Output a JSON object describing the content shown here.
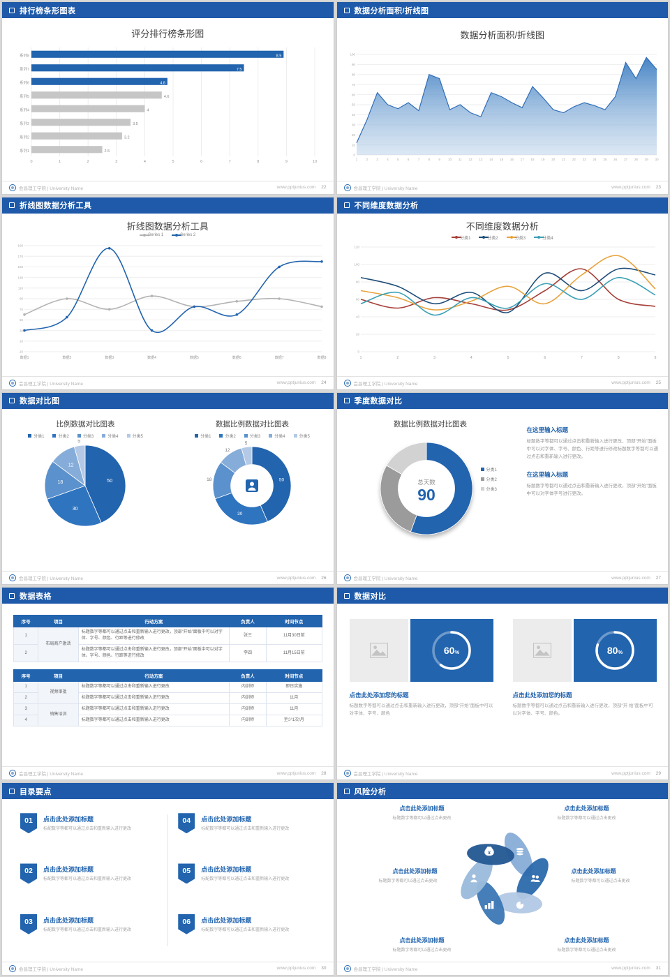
{
  "page": {
    "background": "#d8d8d8",
    "slide_bg": "#ffffff",
    "accent": "#1e5aa9",
    "bar_blue": "#2264ae"
  },
  "footer": {
    "school": "会昌理工学院 | University Name",
    "site": "www.pptjunius.com"
  },
  "slides": [
    {
      "header": "排行榜条形图表",
      "page_num": "22"
    },
    {
      "header": "数据分析面积/折线图",
      "page_num": "23"
    },
    {
      "header": "折线图数据分析工具",
      "page_num": "24"
    },
    {
      "header": "不同维度数据分析",
      "page_num": "25"
    },
    {
      "header": "数据对比图",
      "page_num": "26"
    },
    {
      "header": "季度数据对比",
      "page_num": "27"
    },
    {
      "header": "数据表格",
      "page_num": "28"
    },
    {
      "header": "数据对比",
      "page_num": "29"
    },
    {
      "header": "目录要点",
      "page_num": "30"
    },
    {
      "header": "风险分析",
      "page_num": "31"
    }
  ],
  "chart_data": [
    {
      "id": "ranking-bar",
      "type": "bar",
      "orientation": "horizontal",
      "title": "评分排行榜条形图",
      "categories": [
        "系列1",
        "系列2",
        "系列3",
        "系列4",
        "系列5",
        "系列6",
        "系列7",
        "系列8"
      ],
      "values": [
        2.5,
        3.2,
        3.5,
        4,
        4.6,
        4.8,
        7.5,
        8.9
      ],
      "highlight_from": 5,
      "highlight_color": "#2264ae",
      "bar_color": "#c6c6c6",
      "xlim": [
        0,
        10
      ],
      "xticks": [
        0,
        1,
        2,
        3,
        4,
        5,
        6,
        7,
        8,
        9,
        10
      ]
    },
    {
      "id": "area-analysis",
      "type": "area",
      "title": "数据分析面积/折线图",
      "x": [
        1,
        2,
        3,
        4,
        5,
        6,
        7,
        8,
        9,
        10,
        11,
        12,
        13,
        14,
        15,
        16,
        17,
        18,
        19,
        20,
        21,
        22,
        23,
        24,
        25,
        26,
        27,
        28,
        29,
        30
      ],
      "values": [
        12,
        35,
        62,
        50,
        46,
        52,
        44,
        80,
        76,
        45,
        50,
        42,
        38,
        62,
        58,
        52,
        47,
        68,
        57,
        45,
        42,
        48,
        52,
        49,
        45,
        58,
        92,
        76,
        97,
        85
      ],
      "ylim": [
        0,
        100
      ],
      "yticks": [
        0,
        10,
        20,
        30,
        40,
        50,
        60,
        70,
        80,
        90,
        100
      ],
      "line_color": "#2f6db8",
      "fill_top": "#3d7ec2",
      "fill_bottom": "#b8d0e8"
    },
    {
      "id": "line-tools",
      "type": "line",
      "title": "折线图数据分析工具",
      "categories": [
        "数据1",
        "数据2",
        "数据3",
        "数据4",
        "数据5",
        "数据6",
        "数据7",
        "数据8"
      ],
      "series": [
        {
          "name": "Series 1",
          "color": "#b3b3b3",
          "values": [
            60,
            90,
            70,
            95,
            75,
            85,
            90,
            75
          ]
        },
        {
          "name": "Series 2",
          "color": "#2264ae",
          "values": [
            30,
            55,
            185,
            30,
            75,
            60,
            150,
            160
          ]
        }
      ],
      "ylim": [
        -10,
        190
      ],
      "yticks": [
        -10,
        10,
        30,
        50,
        70,
        90,
        110,
        130,
        150,
        170,
        190
      ],
      "markers": true,
      "legend": "top"
    },
    {
      "id": "dimension-lines",
      "type": "line",
      "title": "不同维度数据分析",
      "categories": [
        "1",
        "2",
        "3",
        "4",
        "5",
        "6",
        "7",
        "8",
        "9"
      ],
      "series": [
        {
          "name": "分类1",
          "color": "#a6403a",
          "values": [
            60,
            50,
            62,
            55,
            48,
            70,
            95,
            60,
            52
          ]
        },
        {
          "name": "分类2",
          "color": "#1f4e79",
          "values": [
            85,
            75,
            55,
            68,
            45,
            90,
            70,
            95,
            88
          ]
        },
        {
          "name": "分类3",
          "color": "#e8a33d",
          "values": [
            70,
            62,
            48,
            58,
            75,
            55,
            88,
            110,
            72
          ]
        },
        {
          "name": "分类4",
          "color": "#3aa0b5",
          "values": [
            55,
            68,
            42,
            62,
            50,
            78,
            60,
            85,
            65
          ]
        }
      ],
      "ylim": [
        0,
        120
      ],
      "yticks": [
        0,
        20,
        40,
        60,
        80,
        100,
        120
      ],
      "markers": false,
      "legend": "top"
    },
    {
      "id": "ratio-pie",
      "type": "pie",
      "title": "比例数据对比图表",
      "labels": [
        "分类1",
        "分类2",
        "分类3",
        "分类4",
        "分类5"
      ],
      "values": [
        50,
        30,
        18,
        12,
        5
      ],
      "colors": [
        "#2264ae",
        "#2f74bf",
        "#5b91cc",
        "#86add9",
        "#b3c9e6"
      ]
    },
    {
      "id": "ratio-donut",
      "type": "donut",
      "title": "数据比例数据对比图表",
      "labels": [
        "分类1",
        "分类2",
        "分类3",
        "分类4",
        "分类5"
      ],
      "values": [
        50,
        30,
        18,
        12,
        5
      ],
      "colors": [
        "#2264ae",
        "#2f74bf",
        "#5b91cc",
        "#86add9",
        "#b3c9e6"
      ],
      "inner": 0.55,
      "show_labels": true,
      "center_icon": "person"
    },
    {
      "id": "quarter-donut",
      "type": "donut",
      "title": "数据比例数据对比图表",
      "labels": [
        "分类1",
        "分类2",
        "分类3"
      ],
      "values": [
        50,
        25,
        15
      ],
      "colors": [
        "#2264ae",
        "#9b9b9b",
        "#d2d2d2"
      ],
      "inner": 0.62,
      "show_labels": false,
      "center_label": "总天数",
      "center_value": "90"
    },
    {
      "id": "ring-60",
      "type": "progress-ring",
      "value": 60,
      "label": "60%"
    },
    {
      "id": "ring-80",
      "type": "progress-ring",
      "value": 80,
      "label": "80%"
    },
    {
      "id": "risk-pinwheel",
      "type": "pinwheel",
      "colors": [
        "#89aed7",
        "#2e6bad",
        "#b3c9e4",
        "#3d79b6",
        "#9bbbdc",
        "#255a94"
      ],
      "icons": [
        "coins",
        "people",
        "pie",
        "barchart",
        "person",
        "moneybag"
      ]
    }
  ],
  "quarter_blocks": [
    {
      "title": "在这里输入标题",
      "body": "标题数字等都可以通过点击和重新输入进行更改，顶部“开始”面板中可以对字体、字号、颜色、行距等进行修改标题数字等都可以通过点击和重新输入进行更改。"
    },
    {
      "title": "在这里输入标题",
      "body": "标题数字等都可以通过点击和重新输入进行更改，顶部“开始”面板中可以对字体字号进行更改。"
    }
  ],
  "tables": {
    "t1": {
      "headers": [
        "序号",
        "项目",
        "行动方案",
        "负责人",
        "时间节点"
      ],
      "project": "布局商产激活",
      "rows": [
        {
          "no": "1",
          "plan": "标题数字等都可以通过点击和重新输入进行更改，顶部“开始”面板中可以对字体、字号、颜色、行距等进行修改",
          "owner": "张三",
          "time": "11月30日前"
        },
        {
          "no": "2",
          "plan": "标题数字等都可以通过点击和重新输入进行更改，顶部“开始”面板中可以对字体、字号、颜色、行距等进行修改",
          "owner": "李四",
          "time": "11月15日前"
        }
      ]
    },
    "t2": {
      "headers": [
        "序号",
        "项目",
        "行动方案",
        "负责人",
        "时间节点"
      ],
      "projects": [
        "视频审批",
        "销售培训"
      ],
      "rows": [
        {
          "no": "1",
          "plan": "标题数字等都可以通过点击和重新输入进行更改",
          "owner": "内训师",
          "time": "即日实施"
        },
        {
          "no": "2",
          "plan": "标题数字等都可以通过点击和重新输入进行更改",
          "owner": "内训师",
          "time": "11月"
        },
        {
          "no": "3",
          "plan": "标题数字等都可以通过点击和重新输入进行更改",
          "owner": "内训师",
          "time": "11月"
        },
        {
          "no": "4",
          "plan": "标题数字等都可以通过点击和重新输入进行更改",
          "owner": "内训师",
          "time": "至少1次/月"
        }
      ]
    }
  },
  "cards": [
    {
      "title": "点击此处添加您的标题",
      "body": "标题数字等都可以通过点击和重新输入进行更改，顶部“开始”面板中可以对字体、字号、颜色"
    },
    {
      "title": "点击此处添加您的标题",
      "body": "标题数字等都可以通过点击和重新输入进行更改，顶部“开 始”面板中可以对字体、字号、颜色。"
    }
  ],
  "toc_items": [
    {
      "num": "01",
      "title": "点击此处添加标题",
      "desc": "标配数字等都可以通过点击和重新输入进行更改"
    },
    {
      "num": "02",
      "title": "点击此处添加标题",
      "desc": "标配数字等都可以通过点击和重新输入进行更改"
    },
    {
      "num": "03",
      "title": "点击此处添加标题",
      "desc": "标配数字等都可以通过点击和重新输入进行更改"
    },
    {
      "num": "04",
      "title": "点击此处添加标题",
      "desc": "标配数字等都可以通过点击和重新输入进行更改"
    },
    {
      "num": "05",
      "title": "点击此处添加标题",
      "desc": "标配数字等都可以通过点击和重新输入进行更改"
    },
    {
      "num": "06",
      "title": "点击此处添加标题",
      "desc": "标配数字等都可以通过点击和重新输入进行更改"
    }
  ],
  "risk_labels": [
    {
      "title": "点击此处添加标题",
      "desc": "标题数字等都可以通过点击更改"
    },
    {
      "title": "点击此处添加标题",
      "desc": "标题数字等都可以通过点击更改"
    },
    {
      "title": "点击此处添加标题",
      "desc": "标题数字等都可以通过点击更改"
    },
    {
      "title": "点击此处添加标题",
      "desc": "标题数字等都可以通过点击更改"
    },
    {
      "title": "点击此处添加标题",
      "desc": "标题数字等都可以通过点击更改"
    },
    {
      "title": "点击此处添加标题",
      "desc": "标题数字等都可以通过点击更改"
    }
  ]
}
